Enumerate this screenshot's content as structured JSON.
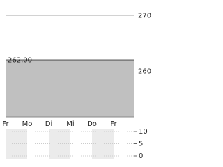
{
  "chart_data": [
    {
      "type": "area",
      "categories": [
        "Fr",
        "Mo",
        "Di",
        "Mi",
        "Do",
        "Fr",
        null
      ],
      "values": [
        262,
        262,
        262,
        262,
        262,
        262,
        262
      ],
      "color": "#c0c0c0",
      "line_color": "#808080",
      "annotation": "262,00",
      "ylim": [
        251.8,
        272.8
      ],
      "yticks": [
        260,
        270
      ],
      "grid": true
    },
    {
      "type": "bar",
      "ylim": [
        0,
        10
      ],
      "yticks": [
        {
          "value": 0,
          "label": "0"
        },
        {
          "value": 5,
          "label": "5"
        },
        {
          "value": 10,
          "label": "10"
        }
      ]
    }
  ]
}
